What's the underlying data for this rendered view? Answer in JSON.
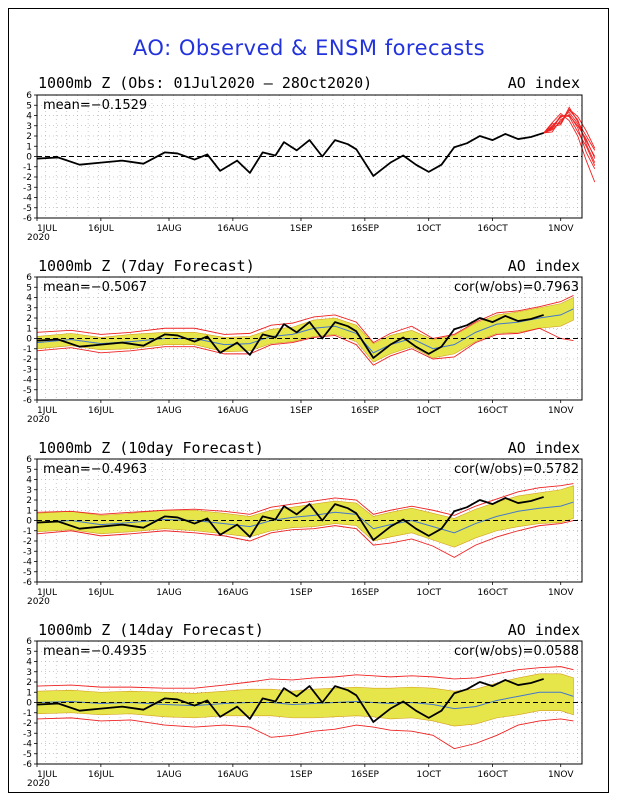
{
  "title": "AO: Observed & ENSM forecasts",
  "colors": {
    "title": "#2233dd",
    "observed": "#000000",
    "ensemble": "#ee2222",
    "spread": "#e6e64a",
    "spread_edge": "#d4a020",
    "mean": "#4477cc",
    "grid": "#999999"
  },
  "x_ticks": [
    "1JUL",
    "16JUL",
    "1AUG",
    "16AUG",
    "1SEP",
    "16SEP",
    "1OCT",
    "16OCT",
    "1NOV"
  ],
  "x_year": "2020",
  "chart_data": [
    {
      "type": "line",
      "title": "1000mb Z (Obs: 01Jul2020 – 28Oct2020)",
      "right_label": "AO index",
      "stat": "mean=−0.1529",
      "cor": "",
      "ylim": [
        -6,
        6
      ],
      "yticks": [
        6,
        5,
        4,
        3,
        2,
        1,
        0,
        -1,
        -2,
        -3,
        -4,
        -5,
        -6
      ],
      "x_range": [
        "1JUL",
        "6NOV"
      ],
      "series": [
        {
          "kind": "observed",
          "x_days": [
            0,
            5,
            10,
            15,
            20,
            25,
            30,
            33,
            37,
            40,
            43,
            47,
            50,
            53,
            56,
            58,
            61,
            64,
            67,
            70,
            73,
            75,
            79,
            83,
            86,
            89,
            92,
            95,
            98,
            101,
            104,
            107,
            110,
            113,
            116,
            119
          ],
          "y": [
            -0.2,
            -0.1,
            -0.8,
            -0.6,
            -0.4,
            -0.7,
            0.4,
            0.3,
            -0.3,
            0.2,
            -1.4,
            -0.4,
            -1.6,
            0.4,
            0.1,
            1.4,
            0.6,
            1.6,
            0.0,
            1.6,
            1.2,
            0.7,
            -1.9,
            -0.6,
            0.1,
            -0.8,
            -1.5,
            -0.8,
            0.9,
            1.3,
            2.0,
            1.6,
            2.2,
            1.7,
            1.9,
            2.3
          ]
        },
        {
          "kind": "members",
          "x_days": [
            119,
            121,
            123,
            125,
            127,
            129,
            131
          ],
          "members": [
            [
              2.3,
              3.0,
              3.8,
              4.3,
              3.2,
              1.5,
              0.0
            ],
            [
              2.3,
              2.6,
              3.4,
              4.5,
              3.6,
              1.2,
              -0.6
            ],
            [
              2.3,
              2.8,
              4.0,
              3.9,
              2.4,
              1.0,
              -0.9
            ],
            [
              2.3,
              3.2,
              3.2,
              4.8,
              3.4,
              2.0,
              0.6
            ],
            [
              2.3,
              2.4,
              3.6,
              4.1,
              2.8,
              0.4,
              -1.2
            ],
            [
              2.3,
              3.3,
              4.2,
              3.5,
              2.0,
              -0.4,
              -2.5
            ],
            [
              2.3,
              2.9,
              3.1,
              4.6,
              3.9,
              2.5,
              0.8
            ],
            [
              2.3,
              2.7,
              3.9,
              4.0,
              3.0,
              1.7,
              -0.2
            ]
          ]
        }
      ]
    },
    {
      "type": "line",
      "title": "1000mb Z (7day Forecast)",
      "right_label": "AO index",
      "stat": "mean=−0.5067",
      "cor": "cor(w/obs)=0.7963",
      "ylim": [
        -6,
        6
      ],
      "yticks": [
        6,
        5,
        4,
        3,
        2,
        1,
        0,
        -1,
        -2,
        -3,
        -4,
        -5,
        -6
      ],
      "x_range": [
        "1JUL",
        "6NOV"
      ],
      "series": [
        {
          "kind": "observed",
          "x_days": [
            0,
            5,
            10,
            15,
            20,
            25,
            30,
            33,
            37,
            40,
            43,
            47,
            50,
            53,
            56,
            58,
            61,
            64,
            67,
            70,
            73,
            75,
            79,
            83,
            86,
            89,
            92,
            95,
            98,
            101,
            104,
            107,
            110,
            113,
            116,
            119
          ],
          "y": [
            -0.2,
            -0.1,
            -0.8,
            -0.6,
            -0.4,
            -0.7,
            0.4,
            0.3,
            -0.3,
            0.2,
            -1.4,
            -0.4,
            -1.6,
            0.4,
            0.1,
            1.4,
            0.6,
            1.6,
            0.0,
            1.6,
            1.2,
            0.7,
            -1.9,
            -0.6,
            0.1,
            -0.8,
            -1.5,
            -0.8,
            0.9,
            1.3,
            2.0,
            1.6,
            2.2,
            1.7,
            1.9,
            2.3
          ]
        },
        {
          "kind": "spread",
          "x_days": [
            0,
            8,
            15,
            22,
            30,
            37,
            44,
            50,
            55,
            60,
            65,
            70,
            75,
            79,
            83,
            88,
            93,
            98,
            103,
            108,
            113,
            118,
            123,
            126
          ],
          "mean": [
            -0.4,
            -0.1,
            -0.5,
            -0.3,
            0.0,
            0.0,
            -0.6,
            -0.5,
            0.2,
            0.4,
            1.0,
            1.2,
            0.5,
            -1.4,
            -0.6,
            0.0,
            -1.0,
            -0.6,
            0.6,
            1.4,
            1.6,
            2.0,
            2.3,
            2.9
          ],
          "half_width": [
            0.6,
            0.6,
            0.6,
            0.7,
            0.6,
            0.6,
            0.7,
            0.7,
            0.7,
            0.7,
            0.8,
            0.8,
            0.8,
            0.9,
            0.9,
            0.8,
            0.9,
            0.9,
            0.9,
            0.9,
            1.0,
            1.0,
            1.1,
            1.1
          ],
          "max": [
            0.6,
            0.8,
            0.4,
            0.6,
            1.0,
            1.0,
            0.4,
            0.5,
            1.3,
            1.5,
            2.1,
            2.3,
            1.6,
            -0.4,
            0.5,
            1.2,
            0.0,
            0.4,
            1.6,
            2.5,
            2.7,
            3.1,
            3.6,
            4.2
          ],
          "min": [
            -1.2,
            -0.9,
            -1.4,
            -1.2,
            -0.8,
            -0.8,
            -1.5,
            -1.5,
            -0.6,
            -0.4,
            0.1,
            0.3,
            -0.6,
            -2.6,
            -1.7,
            -1.0,
            -2.0,
            -1.8,
            -0.4,
            0.4,
            0.5,
            1.0,
            0.0,
            -0.2
          ]
        }
      ]
    },
    {
      "type": "line",
      "title": "1000mb Z (10day Forecast)",
      "right_label": "AO index",
      "stat": "mean=−0.4963",
      "cor": "cor(w/obs)=0.5782",
      "ylim": [
        -6,
        6
      ],
      "yticks": [
        6,
        5,
        4,
        3,
        2,
        1,
        0,
        -1,
        -2,
        -3,
        -4,
        -5,
        -6
      ],
      "x_range": [
        "1JUL",
        "6NOV"
      ],
      "series": [
        {
          "kind": "observed",
          "x_days": [
            0,
            5,
            10,
            15,
            20,
            25,
            30,
            33,
            37,
            40,
            43,
            47,
            50,
            53,
            56,
            58,
            61,
            64,
            67,
            70,
            73,
            75,
            79,
            83,
            86,
            89,
            92,
            95,
            98,
            101,
            104,
            107,
            110,
            113,
            116,
            119
          ],
          "y": [
            -0.2,
            -0.1,
            -0.8,
            -0.6,
            -0.4,
            -0.7,
            0.4,
            0.3,
            -0.3,
            0.2,
            -1.4,
            -0.4,
            -1.6,
            0.4,
            0.1,
            1.4,
            0.6,
            1.6,
            0.0,
            1.6,
            1.2,
            0.7,
            -1.9,
            -0.6,
            0.1,
            -0.8,
            -1.5,
            -0.8,
            0.9,
            1.3,
            2.0,
            1.6,
            2.2,
            1.7,
            1.9,
            2.3
          ]
        },
        {
          "kind": "spread",
          "x_days": [
            0,
            8,
            15,
            22,
            30,
            37,
            44,
            50,
            55,
            60,
            65,
            70,
            75,
            79,
            83,
            88,
            93,
            98,
            103,
            108,
            113,
            118,
            123,
            126
          ],
          "mean": [
            -0.2,
            0.0,
            -0.4,
            -0.2,
            0.1,
            0.0,
            -0.3,
            -0.6,
            0.0,
            0.3,
            0.5,
            0.8,
            0.6,
            -0.8,
            -0.4,
            0.0,
            -0.6,
            -1.2,
            -0.3,
            0.4,
            0.9,
            1.2,
            1.4,
            1.8
          ],
          "half_width": [
            0.9,
            0.9,
            0.9,
            0.9,
            0.9,
            1.0,
            1.0,
            1.0,
            1.0,
            1.0,
            1.1,
            1.1,
            1.1,
            1.2,
            1.2,
            1.2,
            1.3,
            1.4,
            1.4,
            1.4,
            1.5,
            1.5,
            1.6,
            1.6
          ],
          "max": [
            0.8,
            0.9,
            0.6,
            0.8,
            1.0,
            1.1,
            0.9,
            0.6,
            1.3,
            1.6,
            1.9,
            2.2,
            2.0,
            0.6,
            1.0,
            1.4,
            1.0,
            0.5,
            1.4,
            2.1,
            2.8,
            3.2,
            3.4,
            3.6
          ],
          "min": [
            -1.3,
            -1.0,
            -1.5,
            -1.3,
            -1.0,
            -1.2,
            -1.5,
            -2.0,
            -1.2,
            -0.9,
            -0.8,
            -0.5,
            -0.8,
            -2.4,
            -2.2,
            -1.8,
            -2.5,
            -3.6,
            -2.4,
            -1.6,
            -1.0,
            -0.5,
            -0.3,
            0.0
          ]
        }
      ]
    },
    {
      "type": "line",
      "title": "1000mb Z (14day Forecast)",
      "right_label": "AO index",
      "stat": "mean=−0.4935",
      "cor": "cor(w/obs)=0.0588",
      "ylim": [
        -6,
        6
      ],
      "yticks": [
        6,
        5,
        4,
        3,
        2,
        1,
        0,
        -1,
        -2,
        -3,
        -4,
        -5,
        -6
      ],
      "x_range": [
        "1JUL",
        "6NOV"
      ],
      "series": [
        {
          "kind": "observed",
          "x_days": [
            0,
            5,
            10,
            15,
            20,
            25,
            30,
            33,
            37,
            40,
            43,
            47,
            50,
            53,
            56,
            58,
            61,
            64,
            67,
            70,
            73,
            75,
            79,
            83,
            86,
            89,
            92,
            95,
            98,
            101,
            104,
            107,
            110,
            113,
            116,
            119
          ],
          "y": [
            -0.2,
            -0.1,
            -0.8,
            -0.6,
            -0.4,
            -0.7,
            0.4,
            0.3,
            -0.3,
            0.2,
            -1.4,
            -0.4,
            -1.6,
            0.4,
            0.1,
            1.4,
            0.6,
            1.6,
            0.0,
            1.6,
            1.2,
            0.7,
            -1.9,
            -0.6,
            0.1,
            -0.8,
            -1.5,
            -0.8,
            0.9,
            1.3,
            2.0,
            1.6,
            2.2,
            1.7,
            1.9,
            2.3
          ]
        },
        {
          "kind": "spread",
          "x_days": [
            0,
            8,
            15,
            22,
            30,
            37,
            44,
            50,
            55,
            60,
            65,
            70,
            75,
            79,
            83,
            88,
            93,
            98,
            103,
            108,
            113,
            118,
            123,
            126
          ],
          "mean": [
            0.0,
            0.1,
            -0.1,
            0.0,
            -0.2,
            -0.3,
            -0.1,
            0.0,
            0.0,
            -0.2,
            -0.1,
            0.0,
            0.1,
            0.0,
            -0.1,
            0.0,
            -0.2,
            -0.6,
            -0.4,
            0.2,
            0.6,
            1.0,
            1.0,
            0.6
          ],
          "half_width": [
            1.1,
            1.1,
            1.1,
            1.1,
            1.2,
            1.2,
            1.2,
            1.3,
            1.3,
            1.3,
            1.4,
            1.4,
            1.4,
            1.4,
            1.5,
            1.5,
            1.6,
            1.7,
            1.7,
            1.7,
            1.8,
            1.8,
            1.8,
            1.8
          ],
          "max": [
            1.6,
            1.7,
            1.5,
            1.5,
            1.4,
            1.4,
            1.7,
            2.0,
            2.3,
            2.2,
            2.4,
            2.5,
            2.7,
            2.6,
            2.5,
            2.6,
            2.5,
            2.3,
            2.4,
            2.8,
            3.2,
            3.4,
            3.5,
            3.2
          ],
          "min": [
            -1.6,
            -1.5,
            -1.8,
            -1.7,
            -2.2,
            -2.4,
            -2.2,
            -2.4,
            -3.4,
            -3.2,
            -2.8,
            -2.6,
            -2.2,
            -2.4,
            -2.7,
            -2.8,
            -3.2,
            -4.5,
            -4.0,
            -3.2,
            -2.2,
            -1.8,
            -1.6,
            -1.8
          ]
        }
      ]
    }
  ]
}
